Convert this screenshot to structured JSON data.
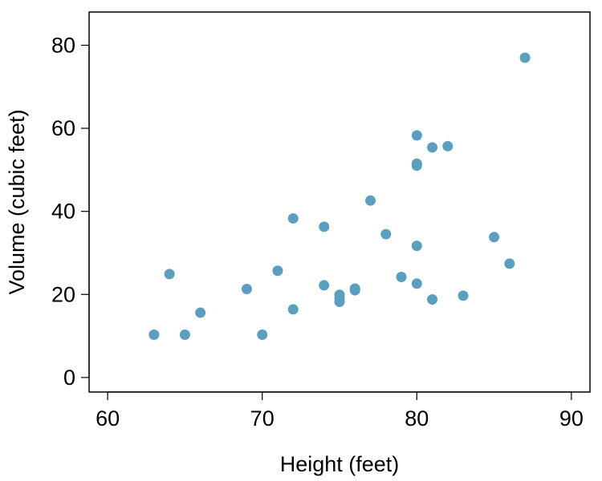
{
  "chart_data": {
    "type": "scatter",
    "xlabel": "Height (feet)",
    "ylabel": "Volume (cubic feet)",
    "xlim": [
      58.8,
      91.2
    ],
    "ylim": [
      -3.5,
      88.0
    ],
    "xticks": [
      60,
      70,
      80,
      90
    ],
    "yticks": [
      0,
      20,
      40,
      60,
      80
    ],
    "grid": false,
    "point_color": "#5b9fc0",
    "points": [
      {
        "x": 63,
        "y": 10.3
      },
      {
        "x": 64,
        "y": 24.9
      },
      {
        "x": 65,
        "y": 10.3
      },
      {
        "x": 66,
        "y": 15.6
      },
      {
        "x": 69,
        "y": 21.3
      },
      {
        "x": 70,
        "y": 10.3
      },
      {
        "x": 71,
        "y": 25.7
      },
      {
        "x": 72,
        "y": 38.3
      },
      {
        "x": 72,
        "y": 16.4
      },
      {
        "x": 74,
        "y": 36.3
      },
      {
        "x": 74,
        "y": 22.2
      },
      {
        "x": 75,
        "y": 19.9
      },
      {
        "x": 75,
        "y": 19.1
      },
      {
        "x": 75,
        "y": 18.2
      },
      {
        "x": 76,
        "y": 21.4
      },
      {
        "x": 76,
        "y": 21.0
      },
      {
        "x": 77,
        "y": 42.6
      },
      {
        "x": 78,
        "y": 34.5
      },
      {
        "x": 79,
        "y": 24.2
      },
      {
        "x": 80,
        "y": 58.3
      },
      {
        "x": 80,
        "y": 51.5
      },
      {
        "x": 80,
        "y": 51.0
      },
      {
        "x": 80,
        "y": 31.7
      },
      {
        "x": 80,
        "y": 22.6
      },
      {
        "x": 81,
        "y": 55.4
      },
      {
        "x": 81,
        "y": 18.8
      },
      {
        "x": 82,
        "y": 55.7
      },
      {
        "x": 83,
        "y": 19.7
      },
      {
        "x": 85,
        "y": 33.8
      },
      {
        "x": 86,
        "y": 27.4
      },
      {
        "x": 87,
        "y": 77.0
      }
    ]
  }
}
